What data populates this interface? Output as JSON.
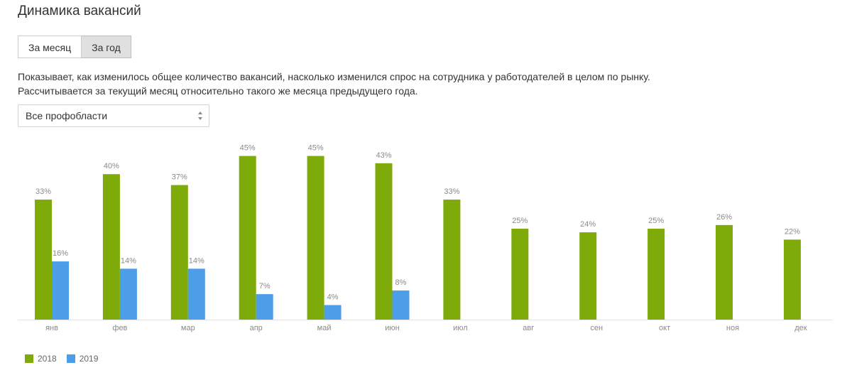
{
  "header": {
    "title": "Динамика вакансий"
  },
  "tabs": [
    {
      "label": "За месяц",
      "active": false
    },
    {
      "label": "За год",
      "active": true
    }
  ],
  "description": {
    "line1": "Показывает, как изменилось общее количество вакансий, насколько изменился спрос на сотрудника у работодателей в целом по рынку.",
    "line2": "Рассчитывается за текущий месяц относительно такого же месяца предыдущего года."
  },
  "filter": {
    "selected": "Все профобласти"
  },
  "colors": {
    "series2018": "#7fab0a",
    "series2019": "#4d9ee8",
    "label": "#8a8a8a",
    "axis": "#e3e3e3"
  },
  "chart_data": {
    "type": "bar",
    "categories": [
      "янв",
      "фев",
      "мар",
      "апр",
      "май",
      "июн",
      "июл",
      "авг",
      "сен",
      "окт",
      "ноя",
      "дек"
    ],
    "series": [
      {
        "name": "2018",
        "values": [
          33,
          40,
          37,
          45,
          45,
          43,
          33,
          25,
          24,
          25,
          26,
          22
        ]
      },
      {
        "name": "2019",
        "values": [
          16,
          14,
          14,
          7,
          4,
          8,
          null,
          null,
          null,
          null,
          null,
          null
        ]
      }
    ],
    "value_labels_2018": [
      "33%",
      "40%",
      "37%",
      "45%",
      "45%",
      "43%",
      "33%",
      "25%",
      "24%",
      "25%",
      "26%",
      "22%"
    ],
    "value_labels_2019": [
      "16%",
      "14%",
      "14%",
      "7%",
      "4%",
      "8%",
      "",
      "",
      "",
      "",
      "",
      ""
    ],
    "unit": "%",
    "ylim": [
      0,
      45
    ],
    "grid": false,
    "legend": "bottom-left"
  }
}
